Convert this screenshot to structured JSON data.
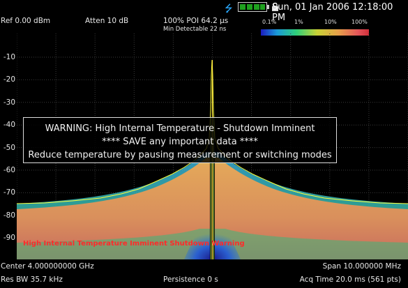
{
  "status_bar": {
    "datetime": "Sun, 01 Jan 2006 12:18:00 PM"
  },
  "header": {
    "ref_level": "Ref 0.00 dBm",
    "attenuation": "Atten 10 dB",
    "poi": "100% POI 64.2 µs",
    "min_detectable": "Min Detectable 22 ns",
    "scale_labels": [
      "0.1%",
      "1%",
      "10%",
      "100%"
    ]
  },
  "plot": {
    "y_axis_labels": [
      "-10",
      "-20",
      "-30",
      "-40",
      "-50",
      "-60",
      "-70",
      "-80",
      "-90"
    ],
    "warning_lines": [
      "WARNING: High Internal Temperature - Shutdown Imminent",
      "**** SAVE any important data ****",
      "Reduce temperature by pausing measurement or switching modes"
    ],
    "status_message": "High Internal Temperature Imminent Shutdown Warning"
  },
  "footer": {
    "center": "Center 4.000000000 GHz",
    "span": "Span 10.000000 MHz",
    "res_bw": "Res BW 35.7 kHz",
    "persistence": "Persistence 0  s",
    "acq_time": "Acq Time 20.0 ms (561 pts)"
  },
  "colors": {
    "background": "#000000",
    "trace": "#ffff3a",
    "warning_text": "#ff2a2a",
    "usb_icon": "#2aa9ff",
    "battery": "#1ea01e"
  }
}
